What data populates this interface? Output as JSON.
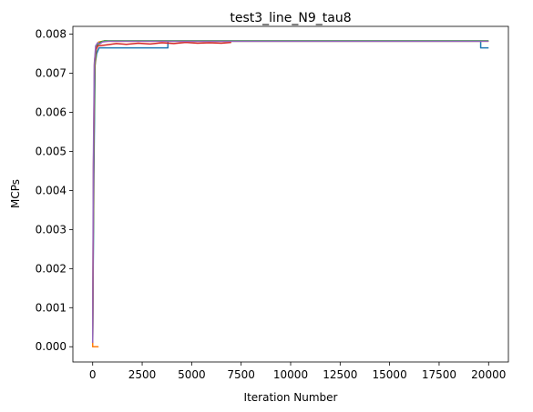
{
  "chart_data": {
    "type": "line",
    "title": "test3_line_N9_tau8",
    "xlabel": "Iteration Number",
    "ylabel": "MCPs",
    "xlim": [
      -1000,
      21000
    ],
    "ylim": [
      -0.00039,
      0.0082
    ],
    "xticks": [
      0,
      2500,
      5000,
      7500,
      10000,
      12500,
      15000,
      17500,
      20000
    ],
    "xtick_labels": [
      "0",
      "2500",
      "5000",
      "7500",
      "10000",
      "12500",
      "15000",
      "17500",
      "20000"
    ],
    "yticks": [
      0.0,
      0.001,
      0.002,
      0.003,
      0.004,
      0.005,
      0.006,
      0.007,
      0.008
    ],
    "ytick_labels": [
      "0.000",
      "0.001",
      "0.002",
      "0.003",
      "0.004",
      "0.005",
      "0.006",
      "0.007",
      "0.008"
    ],
    "grid": false,
    "legend": false,
    "series": [
      {
        "color": "#1f77b4",
        "points": [
          [
            0,
            0.0001
          ],
          [
            60,
            0.0044
          ],
          [
            120,
            0.0072
          ],
          [
            200,
            0.0075
          ],
          [
            320,
            0.00765
          ],
          [
            500,
            0.00765
          ],
          [
            3800,
            0.00765
          ],
          [
            3800,
            0.00782
          ],
          [
            19600,
            0.00782
          ],
          [
            19600,
            0.00765
          ],
          [
            20000,
            0.00765
          ]
        ]
      },
      {
        "color": "#ff7f0e",
        "points": [
          [
            0,
            0.0
          ],
          [
            270,
            0.0
          ],
          [
            0,
            0.0
          ],
          [
            40,
            0.0046
          ],
          [
            100,
            0.0071
          ],
          [
            180,
            0.0076
          ],
          [
            300,
            0.0078
          ],
          [
            500,
            0.00782
          ],
          [
            20000,
            0.00782
          ]
        ]
      },
      {
        "color": "#2ca02c",
        "points": [
          [
            0,
            0.0001
          ],
          [
            50,
            0.0045
          ],
          [
            110,
            0.0073
          ],
          [
            200,
            0.0077
          ],
          [
            400,
            0.0078
          ],
          [
            600,
            0.00783
          ],
          [
            20000,
            0.00783
          ]
        ]
      },
      {
        "color": "#d62728",
        "points": [
          [
            0,
            0.0001
          ],
          [
            40,
            0.0046
          ],
          [
            90,
            0.0073
          ],
          [
            160,
            0.0076
          ],
          [
            260,
            0.0077
          ],
          [
            600,
            0.00772
          ],
          [
            1200,
            0.00776
          ],
          [
            1700,
            0.00774
          ],
          [
            2300,
            0.00777
          ],
          [
            2900,
            0.00775
          ],
          [
            3500,
            0.00778
          ],
          [
            4100,
            0.00776
          ],
          [
            4700,
            0.00779
          ],
          [
            5300,
            0.00777
          ],
          [
            5900,
            0.00778
          ],
          [
            6500,
            0.00777
          ],
          [
            7000,
            0.00779
          ]
        ]
      },
      {
        "color": "#9467bd",
        "points": [
          [
            0,
            0.0001
          ],
          [
            30,
            0.0045
          ],
          [
            80,
            0.0072
          ],
          [
            150,
            0.0077
          ],
          [
            250,
            0.00778
          ],
          [
            350,
            0.00775
          ],
          [
            500,
            0.0078
          ],
          [
            800,
            0.00782
          ],
          [
            20000,
            0.00782
          ]
        ]
      }
    ]
  }
}
